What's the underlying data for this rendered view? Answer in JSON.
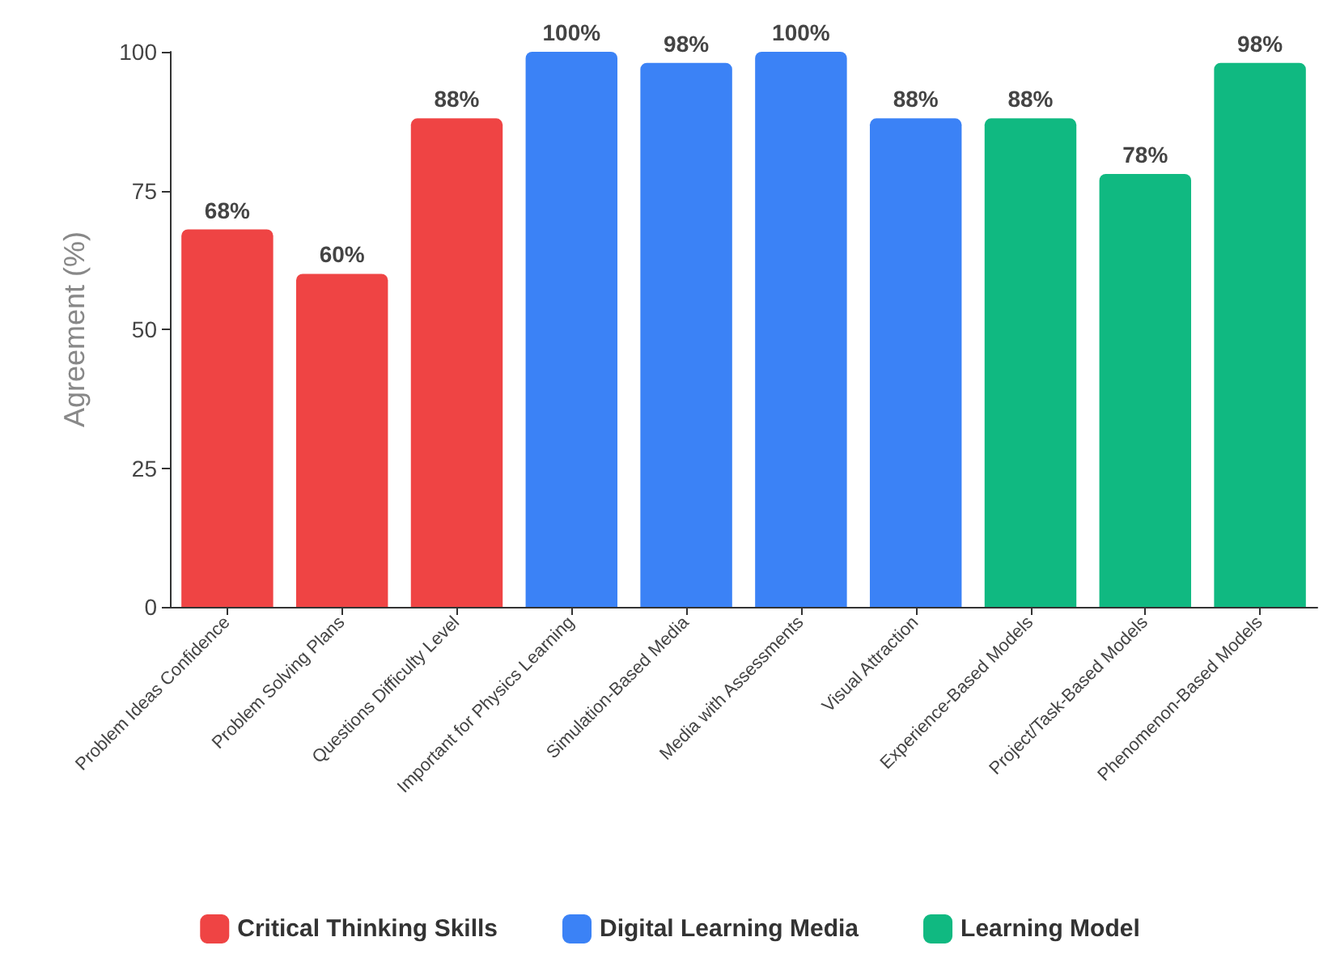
{
  "chart_data": {
    "type": "bar",
    "ylabel": "Agreement (%)",
    "categories": [
      "Problem Ideas Confidence",
      "Problem Solving Plans",
      "Questions Difficulty Level",
      "Important for Physics Learning",
      "Simulation-Based Media",
      "Media with Assessments",
      "Visual Attraction",
      "Experience-Based Models",
      "Project/Task-Based Models",
      "Phenomenon-Based Models"
    ],
    "series": [
      {
        "name": "Critical Thinking Skills",
        "color": "#ef4444",
        "values": [
          68,
          60,
          88,
          null,
          null,
          null,
          null,
          null,
          null,
          null
        ],
        "value_labels": [
          "68%",
          "60%",
          "88%",
          null,
          null,
          null,
          null,
          null,
          null,
          null
        ]
      },
      {
        "name": "Digital Learning Media",
        "color": "#3b82f6",
        "values": [
          null,
          null,
          null,
          100,
          98,
          100,
          88,
          null,
          null,
          null
        ],
        "value_labels": [
          null,
          null,
          null,
          "100%",
          "98%",
          "100%",
          "88%",
          null,
          null,
          null
        ]
      },
      {
        "name": "Learning Model",
        "color": "#10b981",
        "values": [
          null,
          null,
          null,
          null,
          null,
          null,
          null,
          88,
          78,
          98
        ],
        "value_labels": [
          null,
          null,
          null,
          null,
          null,
          null,
          null,
          "88%",
          "78%",
          "98%"
        ]
      }
    ],
    "ylim": [
      0,
      100
    ],
    "yticks": [
      0,
      25,
      50,
      75,
      100
    ],
    "grid": false,
    "legend": "bottom"
  }
}
